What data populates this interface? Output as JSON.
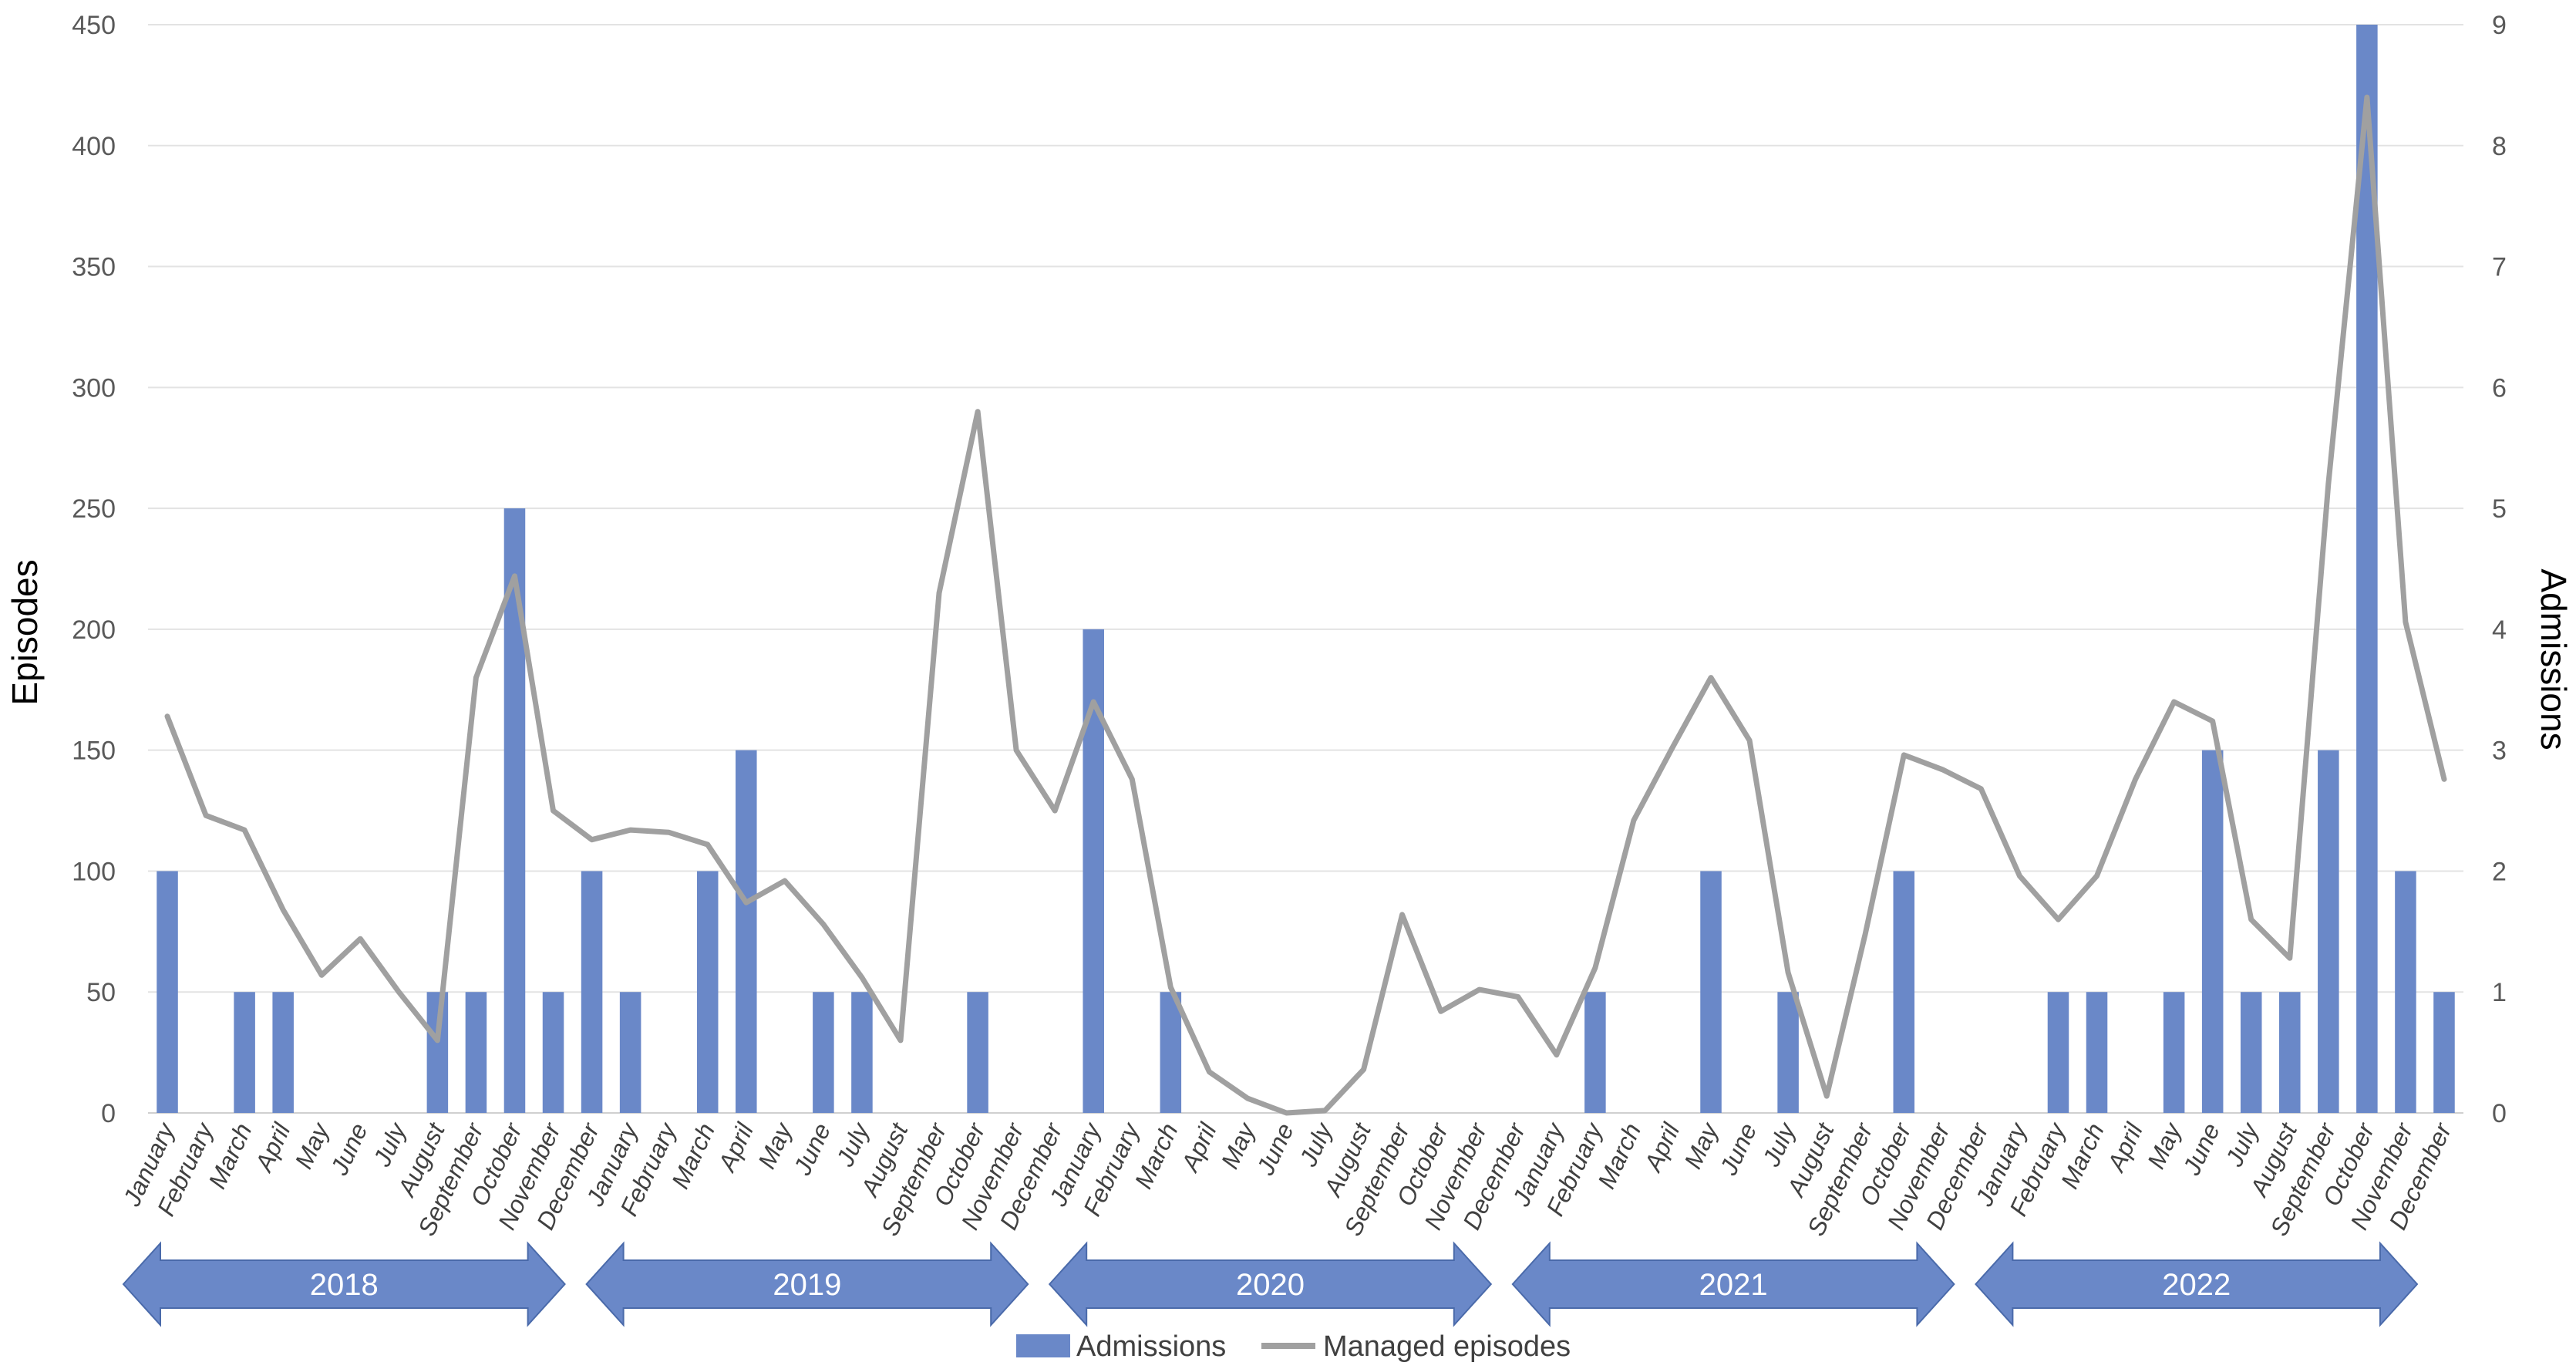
{
  "chart_data": {
    "type": "bar+line",
    "y_left_label": "Episodes",
    "y_right_label": "Admissions",
    "y_left_ticks": [
      "0",
      "50",
      "100",
      "150",
      "200",
      "250",
      "300",
      "350",
      "400",
      "450"
    ],
    "y_right_ticks": [
      "0",
      "1",
      "2",
      "3",
      "4",
      "5",
      "6",
      "7",
      "8",
      "9"
    ],
    "y_left_lim": [
      0,
      450
    ],
    "y_right_lim": [
      0,
      9
    ],
    "grid": true,
    "legend_position": "bottom",
    "colors": {
      "admissions": "#6a88c8",
      "managed": "#a0a0a0",
      "grid": "#e3e3e3",
      "year_arrow": "#6a88c8"
    },
    "months": [
      "January",
      "February",
      "March",
      "April",
      "May",
      "June",
      "July",
      "August",
      "September",
      "October",
      "November",
      "December"
    ],
    "years": [
      "2018",
      "2019",
      "2020",
      "2021",
      "2022"
    ],
    "series": [
      {
        "name": "Admissions",
        "axis": "right",
        "kind": "bar",
        "values": [
          2,
          0,
          1,
          1,
          0,
          0,
          0,
          1,
          1,
          5,
          1,
          2,
          1,
          0,
          2,
          3,
          0,
          1,
          1,
          0,
          0,
          1,
          0,
          0,
          4,
          0,
          1,
          0,
          0,
          0,
          0,
          0,
          0,
          0,
          0,
          0,
          0,
          1,
          0,
          0,
          2,
          0,
          1,
          0,
          0,
          2,
          0,
          0,
          0,
          1,
          1,
          0,
          1,
          3,
          1,
          1,
          3,
          9,
          2,
          1
        ]
      },
      {
        "name": "Managed episodes",
        "axis": "left",
        "kind": "line",
        "values": [
          164,
          123,
          117,
          84,
          57,
          72,
          50,
          30,
          180,
          222,
          125,
          113,
          117,
          116,
          111,
          87,
          96,
          78,
          56,
          30,
          215,
          290,
          150,
          125,
          170,
          138,
          52,
          17,
          6,
          0,
          1,
          18,
          82,
          42,
          51,
          48,
          24,
          60,
          121,
          151,
          180,
          154,
          58,
          7,
          74,
          148,
          142,
          134,
          98,
          80,
          98,
          138,
          170,
          162,
          80,
          64,
          260,
          420,
          203,
          138
        ]
      }
    ],
    "legend": [
      "Admissions",
      "Managed episodes"
    ]
  }
}
